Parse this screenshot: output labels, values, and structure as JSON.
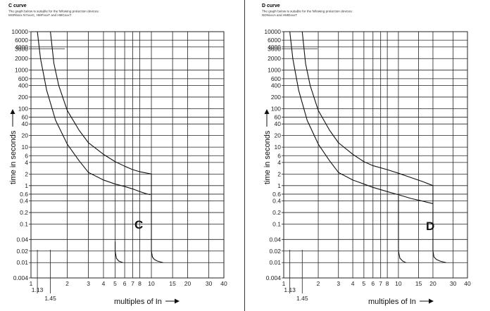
{
  "charts": [
    {
      "id": "c",
      "title": "C curve",
      "note_line1": "The graph below is suitable for the following protection devices:",
      "note_line2": "MSR6xxx  N7xxxC, HMFxxxT and HMCxxxT",
      "big_label": "C",
      "ylabel": "time in seconds",
      "xlabel": "multiples of In"
    },
    {
      "id": "d",
      "title": "D curve",
      "note_line1": "The graph below is suitable for the following protection devices:",
      "note_line2": "NDNxxxA and HMDxxxT",
      "big_label": "D",
      "ylabel": "time in seconds",
      "xlabel": "multiples of In"
    }
  ],
  "chart_data": [
    {
      "type": "line",
      "title": "C curve",
      "xlabel": "multiples of In",
      "ylabel": "time in seconds",
      "xscale": "log",
      "yscale": "log",
      "xlim": [
        1,
        40
      ],
      "ylim": [
        0.004,
        10000
      ],
      "x_ticks": [
        1,
        2,
        3,
        4,
        5,
        6,
        7,
        8,
        10,
        15,
        20,
        30,
        40
      ],
      "x_extra_ticks": [
        1.13,
        1.45
      ],
      "y_ticks": [
        0.004,
        0.01,
        0.02,
        0.04,
        0.1,
        0.2,
        0.4,
        0.6,
        1,
        2,
        4,
        6,
        10,
        20,
        40,
        60,
        100,
        200,
        400,
        600,
        1000,
        2000,
        3600,
        4000,
        6000,
        10000
      ],
      "grid": true,
      "annotation": "C",
      "series": [
        {
          "role": "upper",
          "x": [
            1.45,
            1.55,
            1.7,
            2,
            2.5,
            3,
            4,
            5,
            6,
            7,
            8,
            10,
            10,
            10.2,
            10.6,
            11.2,
            12.5
          ],
          "y": [
            10000,
            1500,
            400,
            90,
            28,
            13,
            6.5,
            4.2,
            3.2,
            2.6,
            2.3,
            2,
            0.02,
            0.014,
            0.012,
            0.011,
            0.01
          ]
        },
        {
          "role": "lower",
          "x": [
            1.13,
            1.2,
            1.35,
            1.6,
            2,
            2.5,
            3,
            4,
            5,
            6,
            7,
            8,
            9,
            9.8
          ],
          "y": [
            10000,
            2000,
            300,
            50,
            12,
            4.5,
            2.2,
            1.4,
            1.1,
            0.95,
            0.82,
            0.7,
            0.62,
            0.58
          ]
        },
        {
          "role": "lower-instant",
          "x": [
            5,
            5,
            5.12,
            5.35,
            5.8
          ],
          "y": [
            0.035,
            0.02,
            0.013,
            0.011,
            0.01
          ]
        }
      ]
    },
    {
      "type": "line",
      "title": "D curve",
      "xlabel": "multiples of In",
      "ylabel": "time in seconds",
      "xscale": "log",
      "yscale": "log",
      "xlim": [
        1,
        40
      ],
      "ylim": [
        0.004,
        10000
      ],
      "x_ticks": [
        1,
        2,
        3,
        4,
        5,
        6,
        7,
        8,
        10,
        15,
        20,
        30,
        40
      ],
      "x_extra_ticks": [
        1.13,
        1.45
      ],
      "y_ticks": [
        0.004,
        0.01,
        0.02,
        0.04,
        0.1,
        0.2,
        0.4,
        0.6,
        1,
        2,
        4,
        6,
        10,
        20,
        40,
        60,
        100,
        200,
        400,
        600,
        1000,
        2000,
        3600,
        4000,
        6000,
        10000
      ],
      "grid": true,
      "annotation": "D",
      "series": [
        {
          "role": "upper",
          "x": [
            1.45,
            1.55,
            1.7,
            2,
            2.5,
            3,
            4,
            5,
            6,
            8,
            10,
            13,
            16,
            20,
            20,
            20.4,
            21.5,
            23,
            26
          ],
          "y": [
            10000,
            1500,
            400,
            90,
            28,
            13,
            6.5,
            4.2,
            3.3,
            2.6,
            2.1,
            1.6,
            1.3,
            1,
            0.02,
            0.014,
            0.012,
            0.011,
            0.01
          ]
        },
        {
          "role": "lower",
          "x": [
            1.13,
            1.2,
            1.35,
            1.6,
            2,
            2.5,
            3,
            4,
            5,
            6,
            8,
            10,
            13,
            16,
            20
          ],
          "y": [
            10000,
            2000,
            300,
            50,
            12,
            4.5,
            2.2,
            1.4,
            1.1,
            0.9,
            0.7,
            0.58,
            0.46,
            0.4,
            0.34
          ]
        },
        {
          "role": "lower-instant",
          "x": [
            10,
            10,
            10.3,
            10.9,
            11.6
          ],
          "y": [
            0.55,
            0.02,
            0.013,
            0.011,
            0.01
          ]
        }
      ]
    }
  ]
}
